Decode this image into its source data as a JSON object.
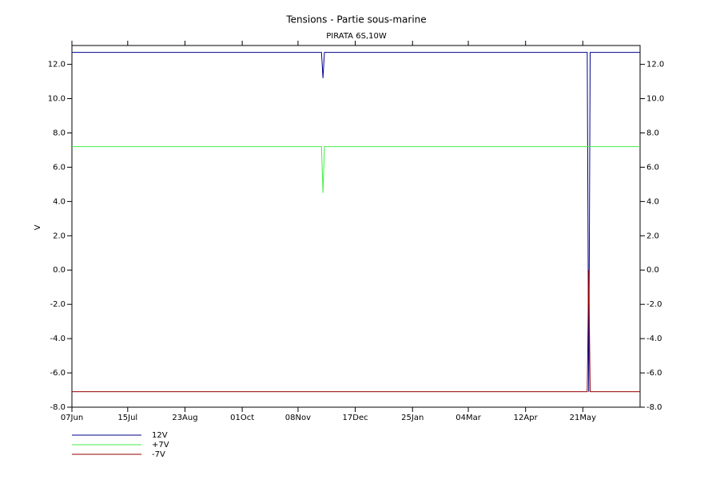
{
  "chart_data": {
    "type": "line",
    "title": "Tensions - Partie sous-marine",
    "subtitle": "PIRATA 6S,10W",
    "y_label": "V",
    "x": [
      0,
      170,
      171,
      172,
      351,
      352,
      353,
      387
    ],
    "xlim": [
      0,
      387
    ],
    "xticks": [
      {
        "value": 0,
        "label": "07Jun"
      },
      {
        "value": 38,
        "label": "15Jul"
      },
      {
        "value": 77,
        "label": "23Aug"
      },
      {
        "value": 116,
        "label": "01Oct"
      },
      {
        "value": 154,
        "label": "08Nov"
      },
      {
        "value": 193,
        "label": "17Dec"
      },
      {
        "value": 232,
        "label": "25Jan"
      },
      {
        "value": 270,
        "label": "04Mar"
      },
      {
        "value": 309,
        "label": "12Apr"
      },
      {
        "value": 348,
        "label": "21May"
      }
    ],
    "ylim": [
      -8,
      13.1
    ],
    "yticks": [
      {
        "value": -8,
        "label": "-8.0"
      },
      {
        "value": -6,
        "label": "-6.0"
      },
      {
        "value": -4,
        "label": "-4.0"
      },
      {
        "value": -2,
        "label": "-2.0"
      },
      {
        "value": 0,
        "label": "0.0"
      },
      {
        "value": 2,
        "label": "2.0"
      },
      {
        "value": 4,
        "label": "4.0"
      },
      {
        "value": 6,
        "label": "6.0"
      },
      {
        "value": 8,
        "label": "8.0"
      },
      {
        "value": 10,
        "label": "10.0"
      },
      {
        "value": 12,
        "label": "12.0"
      }
    ],
    "series": [
      {
        "name": "12V",
        "color": "#00008b",
        "values": [
          12.7,
          12.7,
          11.2,
          12.7,
          12.7,
          -7.1,
          12.7,
          12.7
        ]
      },
      {
        "name": "+7V",
        "color": "#44ee44",
        "values": [
          7.2,
          7.2,
          4.5,
          7.2,
          7.2,
          7.2,
          7.2,
          7.2
        ]
      },
      {
        "name": "-7V",
        "color": "#990000",
        "values": [
          -7.1,
          -7.1,
          -7.1,
          -7.1,
          -7.1,
          0,
          -7.1,
          -7.1
        ]
      }
    ]
  }
}
